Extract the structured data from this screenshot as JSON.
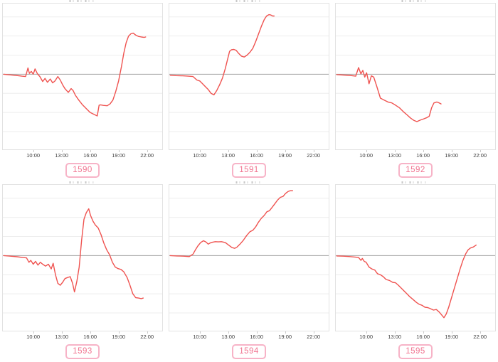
{
  "style": {
    "line_color": "#ef5350",
    "zero_line_color": "#a3a3a3",
    "grid_color": "#ededed",
    "box_border_color": "#e2e2e2",
    "tick_text_color": "#3c3c3c",
    "badge_text_color": "#f0738f",
    "badge_border_color": "#f7b3c7"
  },
  "axis": {
    "x_tick_labels": [
      "10:00",
      "13:00",
      "16:00",
      "19:00",
      "22:00"
    ],
    "x_tick_times": [
      10,
      13,
      16,
      19,
      22
    ],
    "xlim": [
      6.8,
      23.6
    ],
    "ylim": [
      -3.93,
      3.7
    ],
    "gridline_values": [
      3,
      2,
      1,
      -1,
      -2,
      -3
    ],
    "y_tick_labels": []
  },
  "chart_data": [
    {
      "type": "line",
      "id_label": "1590",
      "points": [
        [
          6.9,
          0
        ],
        [
          7.5,
          -0.03
        ],
        [
          8.2,
          -0.06
        ],
        [
          8.8,
          -0.1
        ],
        [
          9.2,
          -0.12
        ],
        [
          9.45,
          0.33
        ],
        [
          9.6,
          0.05
        ],
        [
          9.8,
          0.15
        ],
        [
          10.0,
          0.0
        ],
        [
          10.2,
          0.28
        ],
        [
          10.45,
          0.02
        ],
        [
          10.7,
          -0.12
        ],
        [
          11.0,
          -0.38
        ],
        [
          11.25,
          -0.22
        ],
        [
          11.5,
          -0.42
        ],
        [
          11.8,
          -0.25
        ],
        [
          12.05,
          -0.45
        ],
        [
          12.3,
          -0.35
        ],
        [
          12.6,
          -0.12
        ],
        [
          12.85,
          -0.3
        ],
        [
          13.1,
          -0.55
        ],
        [
          13.35,
          -0.75
        ],
        [
          13.7,
          -0.95
        ],
        [
          14.0,
          -0.75
        ],
        [
          14.2,
          -0.85
        ],
        [
          14.45,
          -1.1
        ],
        [
          14.8,
          -1.35
        ],
        [
          15.2,
          -1.6
        ],
        [
          15.6,
          -1.8
        ],
        [
          16.0,
          -2.0
        ],
        [
          16.4,
          -2.1
        ],
        [
          16.75,
          -2.18
        ],
        [
          16.95,
          -1.62
        ],
        [
          17.1,
          -1.6
        ],
        [
          17.4,
          -1.63
        ],
        [
          17.8,
          -1.65
        ],
        [
          18.1,
          -1.55
        ],
        [
          18.4,
          -1.35
        ],
        [
          18.7,
          -0.9
        ],
        [
          19.0,
          -0.35
        ],
        [
          19.3,
          0.4
        ],
        [
          19.55,
          1.1
        ],
        [
          19.8,
          1.65
        ],
        [
          20.05,
          2.0
        ],
        [
          20.3,
          2.12
        ],
        [
          20.55,
          2.15
        ],
        [
          20.8,
          2.05
        ],
        [
          21.1,
          1.98
        ],
        [
          21.4,
          1.95
        ],
        [
          21.7,
          1.93
        ],
        [
          21.85,
          1.95
        ]
      ]
    },
    {
      "type": "line",
      "id_label": "1591",
      "points": [
        [
          6.9,
          -0.05
        ],
        [
          7.5,
          -0.07
        ],
        [
          8.2,
          -0.08
        ],
        [
          8.8,
          -0.1
        ],
        [
          9.3,
          -0.12
        ],
        [
          9.7,
          -0.3
        ],
        [
          10.0,
          -0.35
        ],
        [
          10.3,
          -0.5
        ],
        [
          10.6,
          -0.65
        ],
        [
          10.9,
          -0.8
        ],
        [
          11.2,
          -1.0
        ],
        [
          11.5,
          -1.08
        ],
        [
          11.8,
          -0.85
        ],
        [
          12.1,
          -0.55
        ],
        [
          12.4,
          -0.2
        ],
        [
          12.7,
          0.3
        ],
        [
          12.95,
          0.8
        ],
        [
          13.15,
          1.2
        ],
        [
          13.35,
          1.28
        ],
        [
          13.6,
          1.3
        ],
        [
          13.85,
          1.25
        ],
        [
          14.1,
          1.1
        ],
        [
          14.4,
          0.95
        ],
        [
          14.7,
          0.9
        ],
        [
          15.0,
          1.0
        ],
        [
          15.3,
          1.15
        ],
        [
          15.6,
          1.35
        ],
        [
          15.9,
          1.7
        ],
        [
          16.2,
          2.1
        ],
        [
          16.5,
          2.5
        ],
        [
          16.8,
          2.85
        ],
        [
          17.05,
          3.05
        ],
        [
          17.3,
          3.12
        ],
        [
          17.5,
          3.1
        ],
        [
          17.7,
          3.05
        ],
        [
          17.85,
          3.05
        ]
      ]
    },
    {
      "type": "line",
      "id_label": "1592",
      "points": [
        [
          6.9,
          -0.02
        ],
        [
          7.6,
          -0.04
        ],
        [
          8.3,
          -0.06
        ],
        [
          8.9,
          -0.1
        ],
        [
          9.2,
          0.35
        ],
        [
          9.45,
          0.02
        ],
        [
          9.65,
          0.2
        ],
        [
          9.85,
          -0.15
        ],
        [
          10.05,
          0.08
        ],
        [
          10.3,
          -0.5
        ],
        [
          10.55,
          -0.08
        ],
        [
          10.8,
          -0.15
        ],
        [
          11.1,
          -0.6
        ],
        [
          11.5,
          -1.25
        ],
        [
          11.9,
          -1.35
        ],
        [
          12.3,
          -1.45
        ],
        [
          12.7,
          -1.5
        ],
        [
          13.1,
          -1.62
        ],
        [
          13.5,
          -1.75
        ],
        [
          13.9,
          -1.95
        ],
        [
          14.3,
          -2.12
        ],
        [
          14.7,
          -2.3
        ],
        [
          15.05,
          -2.42
        ],
        [
          15.35,
          -2.48
        ],
        [
          15.7,
          -2.4
        ],
        [
          16.0,
          -2.35
        ],
        [
          16.35,
          -2.28
        ],
        [
          16.65,
          -2.2
        ],
        [
          16.9,
          -1.75
        ],
        [
          17.15,
          -1.5
        ],
        [
          17.45,
          -1.45
        ],
        [
          17.7,
          -1.5
        ],
        [
          17.9,
          -1.55
        ]
      ]
    },
    {
      "type": "line",
      "id_label": "1593",
      "points": [
        [
          6.9,
          0
        ],
        [
          7.6,
          -0.03
        ],
        [
          8.3,
          -0.06
        ],
        [
          8.9,
          -0.1
        ],
        [
          9.3,
          -0.12
        ],
        [
          9.55,
          -0.35
        ],
        [
          9.75,
          -0.25
        ],
        [
          10.0,
          -0.45
        ],
        [
          10.25,
          -0.3
        ],
        [
          10.5,
          -0.5
        ],
        [
          10.75,
          -0.35
        ],
        [
          11.0,
          -0.45
        ],
        [
          11.3,
          -0.55
        ],
        [
          11.6,
          -0.45
        ],
        [
          11.9,
          -0.7
        ],
        [
          12.1,
          -0.4
        ],
        [
          12.35,
          -1.0
        ],
        [
          12.6,
          -1.45
        ],
        [
          12.85,
          -1.55
        ],
        [
          13.1,
          -1.4
        ],
        [
          13.35,
          -1.2
        ],
        [
          13.6,
          -1.15
        ],
        [
          13.9,
          -1.1
        ],
        [
          14.15,
          -1.45
        ],
        [
          14.35,
          -1.9
        ],
        [
          14.6,
          -1.35
        ],
        [
          14.85,
          -0.6
        ],
        [
          15.1,
          0.8
        ],
        [
          15.35,
          1.9
        ],
        [
          15.6,
          2.25
        ],
        [
          15.85,
          2.45
        ],
        [
          16.05,
          2.1
        ],
        [
          16.3,
          1.8
        ],
        [
          16.55,
          1.6
        ],
        [
          16.85,
          1.45
        ],
        [
          17.15,
          1.1
        ],
        [
          17.45,
          0.65
        ],
        [
          17.75,
          0.3
        ],
        [
          18.05,
          0.05
        ],
        [
          18.35,
          -0.35
        ],
        [
          18.65,
          -0.6
        ],
        [
          18.95,
          -0.68
        ],
        [
          19.25,
          -0.72
        ],
        [
          19.55,
          -0.85
        ],
        [
          19.9,
          -1.15
        ],
        [
          20.2,
          -1.55
        ],
        [
          20.5,
          -2.0
        ],
        [
          20.8,
          -2.2
        ],
        [
          21.1,
          -2.22
        ],
        [
          21.4,
          -2.25
        ],
        [
          21.6,
          -2.22
        ]
      ]
    },
    {
      "type": "line",
      "id_label": "1594",
      "points": [
        [
          6.9,
          0
        ],
        [
          7.6,
          -0.02
        ],
        [
          8.3,
          -0.03
        ],
        [
          8.9,
          -0.05
        ],
        [
          9.3,
          0.08
        ],
        [
          9.55,
          0.3
        ],
        [
          9.8,
          0.5
        ],
        [
          10.1,
          0.68
        ],
        [
          10.4,
          0.78
        ],
        [
          10.65,
          0.72
        ],
        [
          10.9,
          0.6
        ],
        [
          11.1,
          0.66
        ],
        [
          11.35,
          0.7
        ],
        [
          11.65,
          0.73
        ],
        [
          11.95,
          0.72
        ],
        [
          12.3,
          0.73
        ],
        [
          12.7,
          0.68
        ],
        [
          13.05,
          0.55
        ],
        [
          13.4,
          0.42
        ],
        [
          13.7,
          0.38
        ],
        [
          13.95,
          0.45
        ],
        [
          14.25,
          0.6
        ],
        [
          14.6,
          0.8
        ],
        [
          14.95,
          1.05
        ],
        [
          15.3,
          1.25
        ],
        [
          15.6,
          1.32
        ],
        [
          15.9,
          1.5
        ],
        [
          16.2,
          1.75
        ],
        [
          16.5,
          1.95
        ],
        [
          16.8,
          2.1
        ],
        [
          17.1,
          2.3
        ],
        [
          17.35,
          2.35
        ],
        [
          17.6,
          2.5
        ],
        [
          17.9,
          2.7
        ],
        [
          18.2,
          2.9
        ],
        [
          18.5,
          3.05
        ],
        [
          18.8,
          3.1
        ],
        [
          19.05,
          3.25
        ],
        [
          19.3,
          3.35
        ],
        [
          19.55,
          3.4
        ],
        [
          19.8,
          3.4
        ]
      ]
    },
    {
      "type": "line",
      "id_label": "1595",
      "points": [
        [
          6.9,
          -0.02
        ],
        [
          7.6,
          -0.03
        ],
        [
          8.3,
          -0.05
        ],
        [
          8.9,
          -0.08
        ],
        [
          9.2,
          -0.1
        ],
        [
          9.45,
          -0.25
        ],
        [
          9.6,
          -0.15
        ],
        [
          9.8,
          -0.3
        ],
        [
          10.0,
          -0.35
        ],
        [
          10.3,
          -0.6
        ],
        [
          10.6,
          -0.7
        ],
        [
          10.9,
          -0.75
        ],
        [
          11.2,
          -0.95
        ],
        [
          11.5,
          -1.0
        ],
        [
          11.8,
          -1.1
        ],
        [
          12.1,
          -1.25
        ],
        [
          12.45,
          -1.3
        ],
        [
          12.8,
          -1.4
        ],
        [
          13.1,
          -1.42
        ],
        [
          13.4,
          -1.55
        ],
        [
          13.7,
          -1.7
        ],
        [
          14.0,
          -1.85
        ],
        [
          14.3,
          -2.0
        ],
        [
          14.6,
          -2.15
        ],
        [
          14.95,
          -2.3
        ],
        [
          15.3,
          -2.45
        ],
        [
          15.6,
          -2.55
        ],
        [
          15.9,
          -2.6
        ],
        [
          16.2,
          -2.7
        ],
        [
          16.5,
          -2.72
        ],
        [
          16.8,
          -2.78
        ],
        [
          17.1,
          -2.85
        ],
        [
          17.4,
          -2.82
        ],
        [
          17.7,
          -2.95
        ],
        [
          17.95,
          -3.1
        ],
        [
          18.2,
          -3.25
        ],
        [
          18.45,
          -3.05
        ],
        [
          18.7,
          -2.7
        ],
        [
          19.0,
          -2.2
        ],
        [
          19.3,
          -1.7
        ],
        [
          19.6,
          -1.2
        ],
        [
          19.9,
          -0.7
        ],
        [
          20.2,
          -0.25
        ],
        [
          20.5,
          0.1
        ],
        [
          20.75,
          0.3
        ],
        [
          21.0,
          0.4
        ],
        [
          21.3,
          0.45
        ],
        [
          21.6,
          0.55
        ]
      ]
    }
  ]
}
